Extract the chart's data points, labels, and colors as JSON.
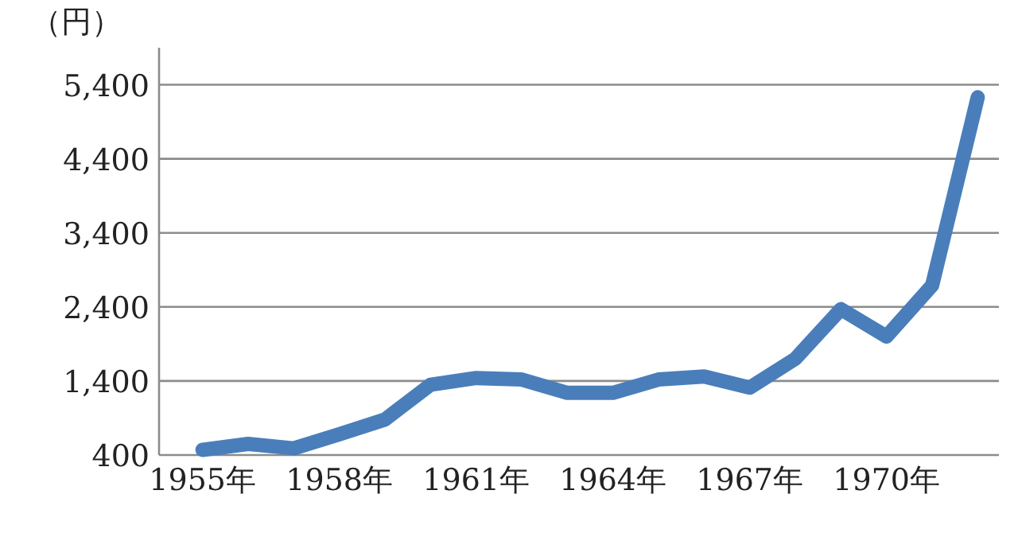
{
  "chart_data": {
    "type": "line",
    "ylabel": "（円）",
    "categories": [
      "1955年",
      null,
      null,
      "1958年",
      null,
      null,
      "1961年",
      null,
      null,
      "1964年",
      null,
      null,
      "1967年",
      null,
      null,
      "1970年",
      null,
      null
    ],
    "series": [
      {
        "color": "#4a7ebb",
        "values": [
          470,
          550,
          490,
          680,
          880,
          1350,
          1440,
          1420,
          1240,
          1240,
          1420,
          1460,
          1310,
          1700,
          2370,
          2000,
          2690,
          5230
        ]
      }
    ],
    "ylim": [
      400,
      5900
    ],
    "yticks": [
      {
        "value": 400,
        "label": "400"
      },
      {
        "value": 1400,
        "label": "1,400"
      },
      {
        "value": 2400,
        "label": "2,400"
      },
      {
        "value": 3400,
        "label": "3,400"
      },
      {
        "value": 4400,
        "label": "4,400"
      },
      {
        "value": 5400,
        "label": "5,400"
      }
    ],
    "grid": "y",
    "marker": "none",
    "line_style": "solid"
  }
}
